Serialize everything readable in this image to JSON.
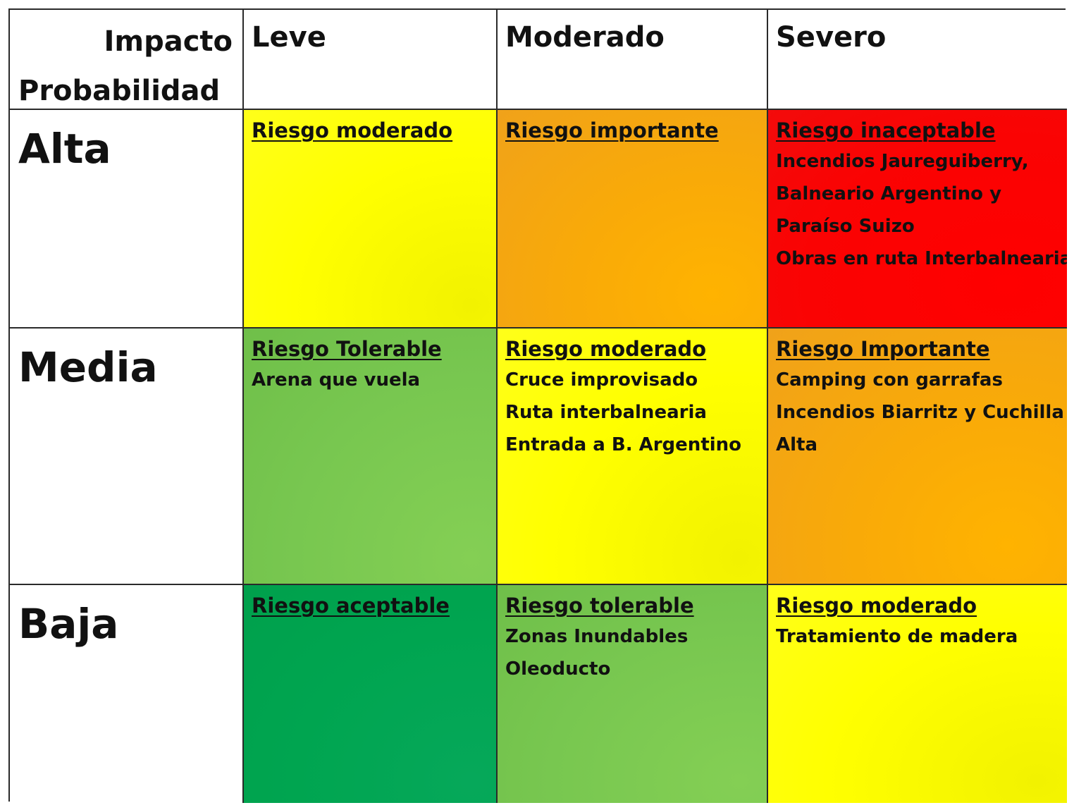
{
  "header": {
    "impacto_label": "Impacto",
    "probabilidad_label": "Probabilidad",
    "columns": [
      "Leve",
      "Moderado",
      "Severo"
    ]
  },
  "rows": [
    {
      "label": "Alta",
      "cells": [
        {
          "title": "Riesgo moderado",
          "items": [],
          "color": "#ffff00"
        },
        {
          "title": "Riesgo importante",
          "items": [],
          "color": "#f9aa08"
        },
        {
          "title": "Riesgo inaceptable",
          "items": [
            "Incendios Jaureguiberry,",
            "Balneario Argentino y",
            "Paraíso Suizo",
            "Obras en ruta Interbalnearia"
          ],
          "color": "#ff0000"
        }
      ]
    },
    {
      "label": "Media",
      "cells": [
        {
          "title": "Riesgo Tolerable",
          "items": [
            "Arena que vuela"
          ],
          "color": "#78c750"
        },
        {
          "title": "Riesgo moderado",
          "items": [
            "Cruce improvisado",
            "Ruta interbalnearia",
            "Entrada a B. Argentino"
          ],
          "color": "#ffff00"
        },
        {
          "title": "Riesgo Importante",
          "items": [
            "Camping con garrafas",
            "Incendios Biarritz y Cuchilla",
            "Alta"
          ],
          "color": "#f9aa08"
        }
      ]
    },
    {
      "label": "Baja",
      "cells": [
        {
          "title": "Riesgo aceptable",
          "items": [],
          "color": "#00a550"
        },
        {
          "title": "Riesgo tolerable",
          "items": [
            "Zonas Inundables",
            "Oleoducto"
          ],
          "color": "#78c750"
        },
        {
          "title": "Riesgo moderado",
          "items": [
            "Tratamiento de madera"
          ],
          "color": "#ffff00"
        }
      ]
    }
  ]
}
